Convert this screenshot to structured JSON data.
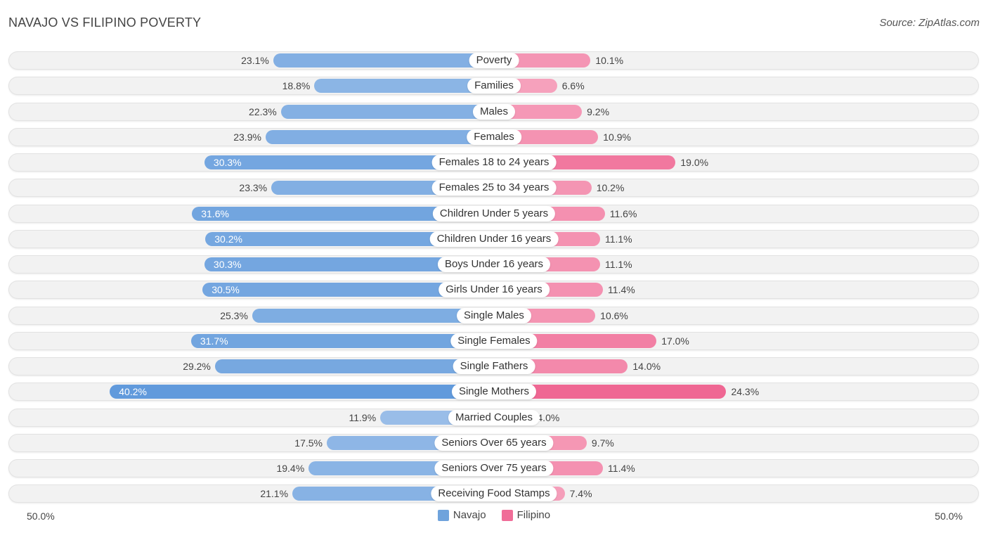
{
  "title": "NAVAJO VS FILIPINO POVERTY",
  "source": "Source: ZipAtlas.com",
  "axis": {
    "left_label": "50.0%",
    "right_label": "50.0%"
  },
  "legend": [
    {
      "name": "Navajo",
      "color": "#6fa3dc"
    },
    {
      "name": "Filipino",
      "color": "#f06d98"
    }
  ],
  "chart_data": {
    "type": "bar",
    "orientation": "horizontal-diverging",
    "title": "NAVAJO VS FILIPINO POVERTY",
    "xlim": [
      0,
      50
    ],
    "unit": "%",
    "categories": [
      "Poverty",
      "Families",
      "Males",
      "Females",
      "Females 18 to 24 years",
      "Females 25 to 34 years",
      "Children Under 5 years",
      "Children Under 16 years",
      "Boys Under 16 years",
      "Girls Under 16 years",
      "Single Males",
      "Single Females",
      "Single Fathers",
      "Single Mothers",
      "Married Couples",
      "Seniors Over 65 years",
      "Seniors Over 75 years",
      "Receiving Food Stamps"
    ],
    "series": [
      {
        "name": "Navajo",
        "values": [
          23.1,
          18.8,
          22.3,
          23.9,
          30.3,
          23.3,
          31.6,
          30.2,
          30.3,
          30.5,
          25.3,
          31.7,
          29.2,
          40.2,
          11.9,
          17.5,
          19.4,
          21.1
        ]
      },
      {
        "name": "Filipino",
        "values": [
          10.1,
          6.6,
          9.2,
          10.9,
          19.0,
          10.2,
          11.6,
          11.1,
          11.1,
          11.4,
          10.6,
          17.0,
          14.0,
          24.3,
          4.0,
          9.7,
          11.4,
          7.4
        ]
      }
    ]
  }
}
